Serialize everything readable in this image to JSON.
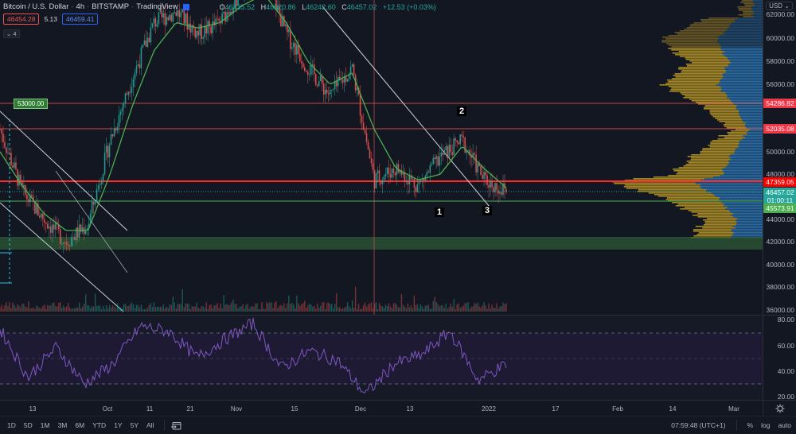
{
  "header": {
    "symbol": "Bitcoin / U.S. Dollar",
    "interval": "4h",
    "exchange": "BITSTAMP",
    "source": "TradingView",
    "ohlc": {
      "o_label": "O",
      "o": "46435.52",
      "h_label": "H",
      "h": "46520.86",
      "l_label": "L",
      "l": "46242.60",
      "c_label": "C",
      "c": "46457.02",
      "change": "+12.53 (+0.03%)"
    },
    "bid": "46454.28",
    "spread": "5.13",
    "ask": "46459.41",
    "collapse_label": "⌄ 4"
  },
  "price_axis": {
    "currency": "USD ⌄",
    "ticks": [
      "62000.00",
      "60000.00",
      "58000.00",
      "56000.00",
      "50000.00",
      "48000.00",
      "44000.00",
      "42000.00",
      "40000.00",
      "38000.00",
      "36000.00"
    ],
    "badges": {
      "r1": "54286.82",
      "r2": "52035.08",
      "r3": "47359.05",
      "last": "46457.02",
      "countdown": "01:00:11",
      "support": "45573.91"
    }
  },
  "rsi_axis": {
    "ticks": [
      "80.00",
      "60.00",
      "40.00",
      "20.00"
    ]
  },
  "time_axis": {
    "ticks": [
      "13",
      "Oct",
      "11",
      "21",
      "Nov",
      "15",
      "Dec",
      "13",
      "2022",
      "17",
      "Feb",
      "14",
      "Mar"
    ]
  },
  "annotations": {
    "callout": "53000.00",
    "wave_1": "1",
    "wave_2": "2",
    "wave_3": "3"
  },
  "bottom_bar": {
    "ranges": [
      "1D",
      "5D",
      "1M",
      "3M",
      "6M",
      "YTD",
      "1Y",
      "5Y",
      "All"
    ],
    "clock": "07:59:48 (UTC+1)",
    "percent": "%",
    "log": "log",
    "auto": "auto"
  },
  "colors": {
    "background": "#131722",
    "up": "#26a69a",
    "down": "#ef5350",
    "ma": "#4caf50",
    "resistance": "#ef5350",
    "support": "#4caf50",
    "rsi": "#7e57c2",
    "vp_up": "#c9a227",
    "vp_down": "#2f7fc1"
  },
  "chart_data": [
    {
      "type": "candlestick",
      "title": "Bitcoin / U.S. Dollar · 4h · BITSTAMP",
      "xlabel": "",
      "ylabel": "USD",
      "ylim": [
        35500,
        63500
      ],
      "x_ticks": [
        "13",
        "Oct",
        "11",
        "21",
        "Nov",
        "15",
        "Dec",
        "13",
        "2022",
        "17",
        "Feb",
        "14",
        "Mar"
      ],
      "series": [
        {
          "name": "BTCUSD close (approx.)",
          "x": [
            "Sep 6",
            "Sep 13",
            "Sep 20",
            "Sep 27",
            "Oct 1",
            "Oct 6",
            "Oct 11",
            "Oct 16",
            "Oct 21",
            "Oct 26",
            "Nov 1",
            "Nov 8",
            "Nov 10",
            "Nov 15",
            "Nov 20",
            "Nov 26",
            "Dec 1",
            "Dec 4",
            "Dec 10",
            "Dec 16",
            "Dec 22",
            "Dec 27",
            "Dec 31",
            "Jan 3"
          ],
          "values": [
            52000,
            46500,
            44000,
            42000,
            43500,
            51000,
            56500,
            61500,
            62500,
            60500,
            61500,
            64500,
            66000,
            60500,
            57500,
            55000,
            57500,
            47500,
            48500,
            47000,
            49500,
            51000,
            47500,
            46457
          ]
        },
        {
          "name": "Moving average (green)",
          "values": [
            50000,
            47000,
            44500,
            43000,
            43000,
            48000,
            54000,
            59000,
            61500,
            61000,
            61500,
            63000,
            64000,
            61500,
            58000,
            56000,
            57000,
            52000,
            48500,
            47500,
            48000,
            50500,
            48500,
            46800
          ]
        }
      ],
      "horizontal_levels": [
        {
          "name": "resistance",
          "value": 54286.82
        },
        {
          "name": "resistance",
          "value": 52035.08
        },
        {
          "name": "resistance (strong)",
          "value": 47359.05
        },
        {
          "name": "last price",
          "value": 46457.02
        },
        {
          "name": "support",
          "value": 45573.91
        },
        {
          "name": "demand zone",
          "range": [
            41200,
            42300
          ]
        }
      ],
      "annotations": [
        "53000.00 callout",
        "wave 1",
        "wave 2",
        "wave 3",
        "descending trendline channels"
      ]
    },
    {
      "type": "line",
      "title": "RSI",
      "ylim": [
        18,
        82
      ],
      "levels": [
        70,
        50,
        30
      ],
      "y_ticks": [
        80,
        60,
        40,
        20
      ],
      "x": [
        "Sep 6",
        "Sep 13",
        "Sep 20",
        "Sep 27",
        "Oct 4",
        "Oct 11",
        "Oct 18",
        "Oct 25",
        "Nov 1",
        "Nov 8",
        "Nov 15",
        "Nov 22",
        "Nov 29",
        "Dec 4",
        "Dec 11",
        "Dec 18",
        "Dec 25",
        "Dec 31",
        "Jan 3"
      ],
      "values": [
        72,
        35,
        58,
        30,
        45,
        74,
        70,
        50,
        64,
        76,
        42,
        55,
        48,
        22,
        45,
        52,
        70,
        33,
        45
      ]
    },
    {
      "type": "bar",
      "title": "Volume profile (horizontal)",
      "categories": [
        "62000",
        "60000",
        "58000",
        "56000",
        "54000",
        "52000",
        "50000",
        "48000",
        "47400",
        "46000",
        "44000",
        "42000",
        "40000"
      ],
      "values": [
        30,
        55,
        40,
        55,
        30,
        15,
        35,
        50,
        85,
        55,
        30,
        40,
        10
      ]
    }
  ]
}
